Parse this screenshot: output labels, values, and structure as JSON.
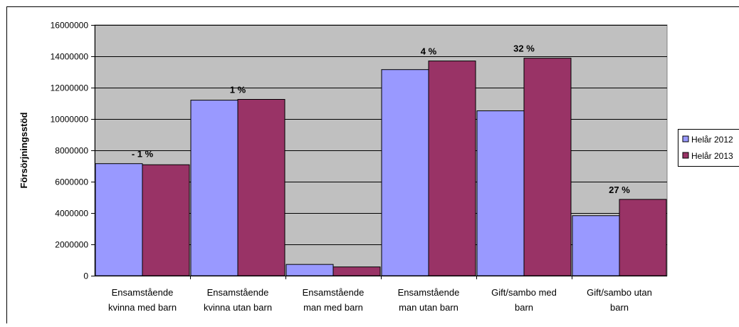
{
  "chart_data": {
    "type": "bar",
    "title": "",
    "xlabel": "",
    "ylabel": "Försörjningsstöd",
    "ylim": [
      0,
      16000000
    ],
    "yticks": [
      0,
      2000000,
      4000000,
      6000000,
      8000000,
      10000000,
      12000000,
      14000000,
      16000000
    ],
    "grid": true,
    "legend_position": "right",
    "categories": [
      [
        "Ensamstående",
        "kvinna med barn"
      ],
      [
        "Ensamstående",
        "kvinna utan barn"
      ],
      [
        "Ensamstående",
        "man med barn"
      ],
      [
        "Ensamstående",
        "man utan barn"
      ],
      [
        "Gift/sambo med",
        "barn"
      ],
      [
        "Gift/sambo utan",
        "barn"
      ]
    ],
    "series": [
      {
        "name": "Helår 2012",
        "color": "#9999ff",
        "values": [
          7150000,
          11200000,
          720000,
          13150000,
          10520000,
          3830000
        ]
      },
      {
        "name": "Helår 2013",
        "color": "#993366",
        "values": [
          7080000,
          11250000,
          560000,
          13700000,
          13880000,
          4870000
        ]
      }
    ],
    "annotations": [
      "- 1 %",
      "1 %",
      "",
      "4 %",
      "32 %",
      "27 %"
    ],
    "colors": {
      "plot_background": "#c0c0c0",
      "gridline": "#000000",
      "page_background": "#ffffff"
    }
  }
}
